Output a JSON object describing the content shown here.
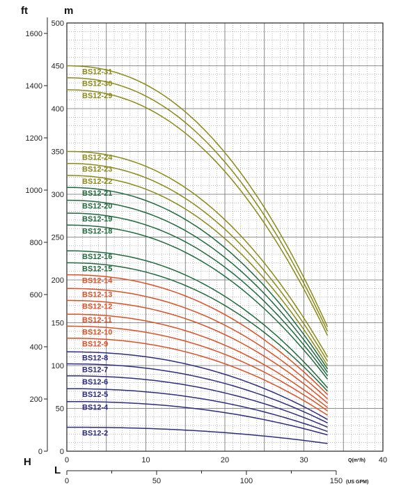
{
  "chart_data": {
    "type": "line",
    "axes": {
      "ft_unit": "ft",
      "m_unit": "m",
      "h_label": "H",
      "l_label": "L",
      "flow_unit": "Q(m³/h)",
      "gpm_unit": "(US GPM)",
      "m_ticks": [
        "0",
        "50",
        "100",
        "150",
        "200",
        "250",
        "300",
        "350",
        "400",
        "450",
        "500"
      ],
      "ft_ticks": [
        "0",
        "200",
        "400",
        "600",
        "800",
        "1000",
        "1200",
        "1400",
        "1600"
      ],
      "q_ticks": [
        "0",
        "10",
        "20",
        "30",
        "40"
      ],
      "gpm_ticks": [
        "0",
        "50",
        "100",
        "150"
      ],
      "xlim": [
        0,
        40
      ],
      "ylim_m": [
        0,
        500
      ],
      "ylim_ft": [
        0,
        1640
      ],
      "xlim_gpm": [
        0,
        176
      ],
      "x_end": 33
    },
    "grid": true,
    "colors": {
      "olive": "#8a8a18",
      "green": "#1f6a3c",
      "red": "#e04e22",
      "blue": "#2c2c80"
    },
    "series": [
      {
        "name": "BS12-31",
        "h0": 450,
        "h_end": 145,
        "color": "olive"
      },
      {
        "name": "BS12-30",
        "h0": 436,
        "h_end": 140,
        "color": "olive"
      },
      {
        "name": "BS12-29",
        "h0": 422,
        "h_end": 135,
        "color": "olive"
      },
      {
        "name": "BS12-24",
        "h0": 350,
        "h_end": 110,
        "color": "olive"
      },
      {
        "name": "BS12-23",
        "h0": 336,
        "h_end": 105,
        "color": "olive"
      },
      {
        "name": "BS12-22",
        "h0": 322,
        "h_end": 100,
        "color": "olive"
      },
      {
        "name": "BS12-21",
        "h0": 308,
        "h_end": 96,
        "color": "green"
      },
      {
        "name": "BS12-20",
        "h0": 293,
        "h_end": 92,
        "color": "green"
      },
      {
        "name": "BS12-19",
        "h0": 278,
        "h_end": 88,
        "color": "green"
      },
      {
        "name": "BS12-18",
        "h0": 264,
        "h_end": 84,
        "color": "green"
      },
      {
        "name": "BS12-16",
        "h0": 234,
        "h_end": 74,
        "color": "green"
      },
      {
        "name": "BS12-15",
        "h0": 220,
        "h_end": 70,
        "color": "green"
      },
      {
        "name": "BS12-14",
        "h0": 206,
        "h_end": 66,
        "color": "red"
      },
      {
        "name": "BS12-13",
        "h0": 190,
        "h_end": 61,
        "color": "red"
      },
      {
        "name": "BS12-12",
        "h0": 176,
        "h_end": 56,
        "color": "red"
      },
      {
        "name": "BS12-11",
        "h0": 160,
        "h_end": 51,
        "color": "red"
      },
      {
        "name": "BS12-10",
        "h0": 146,
        "h_end": 47,
        "color": "red"
      },
      {
        "name": "BS12-9",
        "h0": 132,
        "h_end": 42,
        "color": "red"
      },
      {
        "name": "BS12-8",
        "h0": 116,
        "h_end": 37,
        "color": "blue"
      },
      {
        "name": "BS12-7",
        "h0": 102,
        "h_end": 33,
        "color": "blue"
      },
      {
        "name": "BS12-6",
        "h0": 88,
        "h_end": 28,
        "color": "blue"
      },
      {
        "name": "BS12-5",
        "h0": 73,
        "h_end": 23,
        "color": "blue"
      },
      {
        "name": "BS12-4",
        "h0": 58,
        "h_end": 19,
        "color": "blue"
      },
      {
        "name": "BS12-2",
        "h0": 28,
        "h_end": 9,
        "color": "blue"
      }
    ]
  }
}
